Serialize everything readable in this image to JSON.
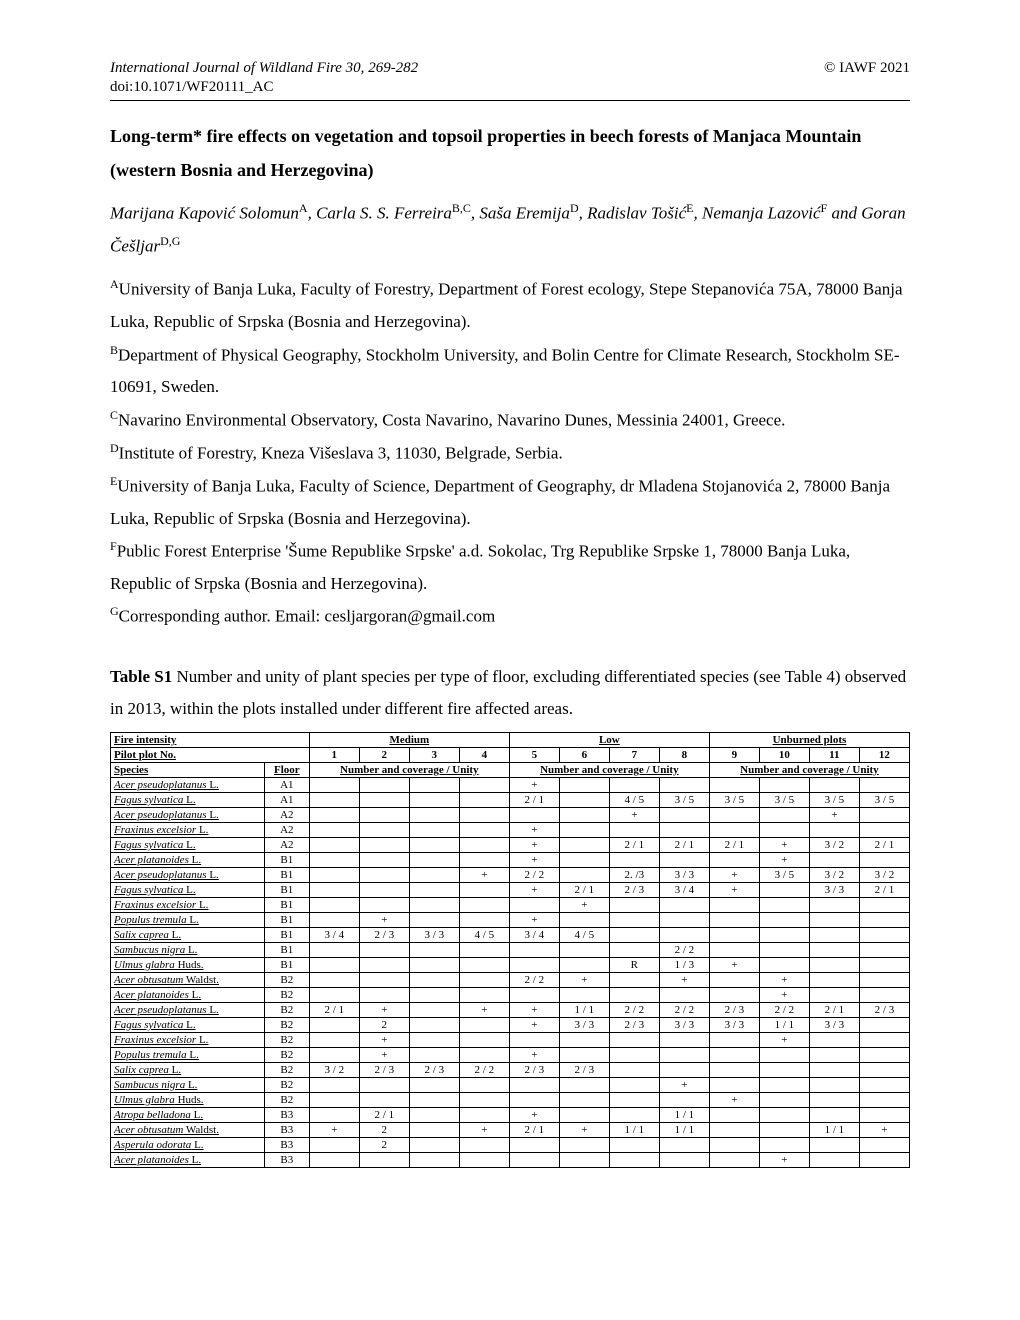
{
  "header": {
    "journal": "International Journal of Wildland Fire 30,",
    "pages": "269-282",
    "copyright": "© IAWF 2021",
    "doi": "doi:10.1071/WF20111_AC"
  },
  "title": "Long-term* fire effects on vegetation and topsoil properties in beech forests of Manjaca Mountain (western Bosnia and Herzegovina)",
  "authors_html": "Marijana Kapović Solomun<sup>A</sup>, Carla S. S. Ferreira<sup>B,C</sup>, Saša Eremija<sup>D</sup>, Radislav Tošić<sup>E</sup>, Nemanja Lazović<sup>F</sup> and Goran Češljar<sup>D,G</sup>",
  "affiliations": [
    "<sup>A</sup>University of Banja Luka, Faculty of Forestry, Department of Forest ecology, Stepe Stepanovića 75A, 78000 Banja Luka, Republic of Srpska (Bosnia and Herzegovina).",
    "<sup>B</sup>Department of Physical Geography, Stockholm University, and Bolin Centre for Climate Research, Stockholm SE-10691, Sweden.",
    "<sup>C</sup>Navarino Environmental Observatory, Costa Navarino, Navarino Dunes, Messinia 24001, Greece.",
    "<sup>D</sup>Institute of Forestry, Kneza Višeslava 3, 11030, Belgrade, Serbia.",
    "<sup>E</sup>University of Banja Luka, Faculty of Science, Department of Geography, dr Mladena Stojanovića 2, 78000 Banja Luka, Republic of Srpska (Bosnia and Herzegovina).",
    "<sup>F</sup>Public Forest Enterprise 'Šume Republike Srpske' a.d. Sokolac, Trg Republike Srpske 1, 78000 Banja Luka, Republic of Srpska (Bosnia and Herzegovina).",
    "<sup>G</sup>Corresponding author. Email: cesljargoran@gmail.com"
  ],
  "table_caption": "<b>Table S1</b> Number and unity of plant species per type of floor, excluding differentiated species (see Table 4) observed in 2013, within the plots installed under different fire affected areas.",
  "table": {
    "header": {
      "fire_intensity_label": "Fire intensity",
      "groups": [
        "Medium",
        "Low",
        "Unburned plots"
      ],
      "pilot_label": "Pilot plot No.",
      "plots": [
        "1",
        "2",
        "3",
        "4",
        "5",
        "6",
        "7",
        "8",
        "9",
        "10",
        "11",
        "12"
      ],
      "species_label": "Species",
      "floor_label": "Floor",
      "coverage_label": "Number and coverage / Unity"
    },
    "rows": [
      {
        "s": "Acer pseudoplatanus L.",
        "f": "A1",
        "c": [
          "",
          "",
          "",
          "",
          "+",
          "",
          "",
          "",
          "",
          "",
          "",
          ""
        ]
      },
      {
        "s": "Fagus sylvatica L.",
        "f": "A1",
        "c": [
          "",
          "",
          "",
          "",
          "2 / 1",
          "",
          "4 / 5",
          "3 / 5",
          "3 / 5",
          "3 / 5",
          "3 / 5",
          "3 / 5"
        ]
      },
      {
        "s": "Acer pseudoplatanus L.",
        "f": "A2",
        "c": [
          "",
          "",
          "",
          "",
          "",
          "",
          "+",
          "",
          "",
          "",
          "+",
          ""
        ]
      },
      {
        "s": "Fraxinus excelsior L.",
        "f": "A2",
        "c": [
          "",
          "",
          "",
          "",
          "+",
          "",
          "",
          "",
          "",
          "",
          "",
          ""
        ]
      },
      {
        "s": "Fagus sylvatica L.",
        "f": "A2",
        "c": [
          "",
          "",
          "",
          "",
          "+",
          "",
          "2 / 1",
          "2 / 1",
          "2 / 1",
          "+",
          "3 / 2",
          "2 / 1"
        ]
      },
      {
        "s": "Acer platanoides L.",
        "f": "B1",
        "c": [
          "",
          "",
          "",
          "",
          "+",
          "",
          "",
          "",
          "",
          "+",
          "",
          ""
        ]
      },
      {
        "s": "Acer pseudoplatanus L.",
        "f": "B1",
        "c": [
          "",
          "",
          "",
          "+",
          "2 / 2",
          "",
          "2. /3",
          "3 / 3",
          "+",
          "3 / 5",
          "3 / 2",
          "3 / 2"
        ]
      },
      {
        "s": "Fagus sylvatica L.",
        "f": "B1",
        "c": [
          "",
          "",
          "",
          "",
          "+",
          "2 / 1",
          "2 / 3",
          "3 / 4",
          "+",
          "",
          "3 / 3",
          "2 / 1"
        ]
      },
      {
        "s": "Fraxinus excelsior L.",
        "f": "B1",
        "c": [
          "",
          "",
          "",
          "",
          "",
          "+",
          "",
          "",
          "",
          "",
          "",
          ""
        ]
      },
      {
        "s": "Populus tremula L.",
        "f": "B1",
        "c": [
          "",
          "+",
          "",
          "",
          "+",
          "",
          "",
          "",
          "",
          "",
          "",
          ""
        ]
      },
      {
        "s": "Salix caprea L.",
        "f": "B1",
        "c": [
          "3 / 4",
          "2 / 3",
          "3 / 3",
          "4 / 5",
          "3 / 4",
          "4 / 5",
          "",
          "",
          "",
          "",
          "",
          ""
        ]
      },
      {
        "s": "Sambucus nigra L.",
        "f": "B1",
        "c": [
          "",
          "",
          "",
          "",
          "",
          "",
          "",
          "2 / 2",
          "",
          "",
          "",
          ""
        ]
      },
      {
        "s": "Ulmus glabra Huds.",
        "f": "B1",
        "c": [
          "",
          "",
          "",
          "",
          "",
          "",
          "R",
          "1 / 3",
          "+",
          "",
          "",
          ""
        ]
      },
      {
        "s": "Acer obtusatum Waldst.",
        "f": "B2",
        "c": [
          "",
          "",
          "",
          "",
          "2 / 2",
          "+",
          "",
          "+",
          "",
          "+",
          "",
          ""
        ]
      },
      {
        "s": "Acer platanoides L.",
        "f": "B2",
        "c": [
          "",
          "",
          "",
          "",
          "",
          "",
          "",
          "",
          "",
          "+",
          "",
          ""
        ]
      },
      {
        "s": "Acer pseudoplatanus L.",
        "f": "B2",
        "c": [
          "2 / 1",
          "+",
          "",
          "+",
          "+",
          "1 / 1",
          "2 / 2",
          "2 / 2",
          "2 / 3",
          "2 / 2",
          "2 / 1",
          "2 / 3"
        ]
      },
      {
        "s": "Fagus sylvatica L.",
        "f": "B2",
        "c": [
          "",
          "2",
          "",
          "",
          "+",
          "3 / 3",
          "2 / 3",
          "3 / 3",
          "3 / 3",
          "1 / 1",
          "3 / 3",
          ""
        ]
      },
      {
        "s": "Fraxinus excelsior L.",
        "f": "B2",
        "c": [
          "",
          "+",
          "",
          "",
          "",
          "",
          "",
          "",
          "",
          "+",
          "",
          ""
        ]
      },
      {
        "s": "Populus tremula L.",
        "f": "B2",
        "c": [
          "",
          "+",
          "",
          "",
          "+",
          "",
          "",
          "",
          "",
          "",
          "",
          ""
        ]
      },
      {
        "s": "Salix caprea L.",
        "f": "B2",
        "c": [
          "3 / 2",
          "2 / 3",
          "2 / 3",
          "2 / 2",
          "2 / 3",
          "2 / 3",
          "",
          "",
          "",
          "",
          "",
          ""
        ]
      },
      {
        "s": "Sambucus nigra L.",
        "f": "B2",
        "c": [
          "",
          "",
          "",
          "",
          "",
          "",
          "",
          "+",
          "",
          "",
          "",
          ""
        ]
      },
      {
        "s": "Ulmus glabra Huds.",
        "f": "B2",
        "c": [
          "",
          "",
          "",
          "",
          "",
          "",
          "",
          "",
          "+",
          "",
          "",
          ""
        ]
      },
      {
        "s": "Atropa belladona L.",
        "f": "B3",
        "c": [
          "",
          "2 / 1",
          "",
          "",
          "+",
          "",
          "",
          "1 / 1",
          "",
          "",
          "",
          ""
        ]
      },
      {
        "s": "Acer obtusatum Waldst.",
        "f": "B3",
        "c": [
          "+",
          "2",
          "",
          "+",
          "2 / 1",
          "+",
          "1 / 1",
          "1 / 1",
          "",
          "",
          "1 / 1",
          "+"
        ]
      },
      {
        "s": "Asperula odorata L.",
        "f": "B3",
        "c": [
          "",
          "2",
          "",
          "",
          "",
          "",
          "",
          "",
          "",
          "",
          "",
          ""
        ]
      },
      {
        "s": "Acer platanoides L.",
        "f": "B3",
        "c": [
          "",
          "",
          "",
          "",
          "",
          "",
          "",
          "",
          "",
          "+",
          "",
          ""
        ]
      }
    ]
  }
}
